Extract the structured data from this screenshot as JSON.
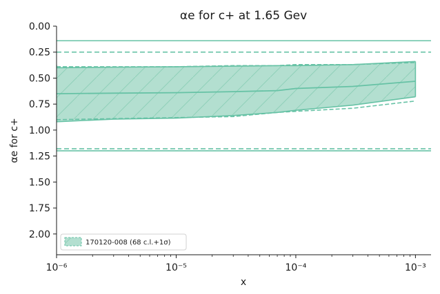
{
  "chart_data": {
    "type": "line",
    "title": "αe for c+ at 1.65 Gev",
    "xlabel": "x",
    "ylabel": "αe for c+",
    "x_scale": "log",
    "xlim": [
      1e-06,
      0.00135
    ],
    "ylim": [
      2.2,
      0.0
    ],
    "y_inverted": true,
    "grid": false,
    "legend_position": "lower-left",
    "colors": {
      "series": "#66c2a5",
      "band_fill": "#b3dfd0",
      "hatch": "#8fd0b9"
    },
    "x_ticks": [
      {
        "value": 1e-06,
        "label": "10⁻⁶"
      },
      {
        "value": 1e-05,
        "label": "10⁻⁵"
      },
      {
        "value": 0.0001,
        "label": "10⁻⁴"
      },
      {
        "value": 0.001,
        "label": "10⁻³"
      }
    ],
    "y_ticks": [
      "0.00",
      "0.25",
      "0.50",
      "0.75",
      "1.00",
      "1.25",
      "1.50",
      "1.75",
      "2.00"
    ],
    "series": [
      {
        "name": "170120-008 (68 c.l.+1σ)",
        "x": [
          1e-06,
          3e-06,
          1e-05,
          3e-05,
          7e-05,
          0.0001,
          0.0003,
          0.001
        ],
        "central": [
          0.65,
          0.645,
          0.64,
          0.63,
          0.62,
          0.6,
          0.58,
          0.53
        ],
        "band_upper": [
          0.4,
          0.395,
          0.39,
          0.385,
          0.38,
          0.38,
          0.37,
          0.34
        ],
        "band_lower": [
          0.92,
          0.895,
          0.885,
          0.86,
          0.83,
          0.81,
          0.76,
          0.68
        ],
        "dashed_upper": [
          0.39,
          0.39,
          0.39,
          0.38,
          0.38,
          0.37,
          0.37,
          0.35
        ],
        "dashed_lower": [
          0.9,
          0.89,
          0.88,
          0.87,
          0.83,
          0.82,
          0.79,
          0.72
        ]
      }
    ],
    "reference_lines": [
      {
        "style": "solid",
        "y": 0.14
      },
      {
        "style": "dashed",
        "y": 0.25
      },
      {
        "style": "dashed",
        "y": 1.18
      },
      {
        "style": "solid",
        "y": 1.2
      }
    ]
  }
}
